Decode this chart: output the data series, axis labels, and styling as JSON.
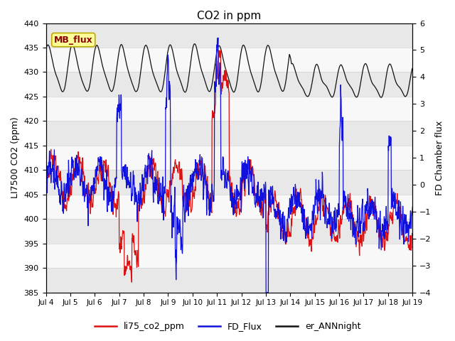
{
  "title": "CO2 in ppm",
  "ylabel_left": "LI7500 CO2 (ppm)",
  "ylabel_right": "FD Chamber flux",
  "ylim_left": [
    385,
    440
  ],
  "ylim_right": [
    -4.0,
    6.0
  ],
  "yticks_left": [
    385,
    390,
    395,
    400,
    405,
    410,
    415,
    420,
    425,
    430,
    435,
    440
  ],
  "yticks_right": [
    -4.0,
    -3.0,
    -2.0,
    -1.0,
    0.0,
    1.0,
    2.0,
    3.0,
    4.0,
    5.0,
    6.0
  ],
  "xtick_labels": [
    "Jul 4",
    "Jul 5",
    "Jul 6",
    "Jul 7",
    "Jul 8",
    "Jul 9",
    "Jul 10",
    "Jul 11",
    "Jul 12",
    "Jul 13",
    "Jul 14",
    "Jul 15",
    "Jul 16",
    "Jul 17",
    "Jul 18",
    "Jul 19"
  ],
  "colors": {
    "red": "#dd1111",
    "blue": "#1111dd",
    "black": "#111111",
    "bg_dark": "#e8e8e8",
    "bg_light": "#f8f8f8",
    "annotation_fill": "#ffff99",
    "annotation_edge": "#bbaa00"
  },
  "legend_entries": [
    "li75_co2_ppm",
    "FD_Flux",
    "er_ANNnight"
  ],
  "annotation_text": "MB_flux",
  "lw": 0.9,
  "figsize": [
    6.4,
    4.8
  ],
  "dpi": 100
}
